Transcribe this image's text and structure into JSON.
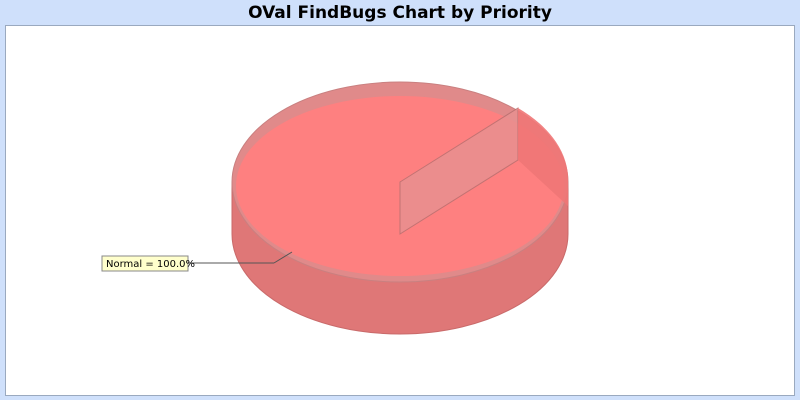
{
  "chart_data": {
    "type": "pie",
    "title": "OVal FindBugs Chart by Priority",
    "labels": [
      "Normal"
    ],
    "values": [
      100.0
    ],
    "colors": [
      "#ff7f7f"
    ],
    "data_labels": [
      "Normal = 100.0%"
    ],
    "style": "3d"
  },
  "colors": {
    "background": "#cfe0fb",
    "plot_background": "#ffffff",
    "label_box": "#ffffcc"
  }
}
